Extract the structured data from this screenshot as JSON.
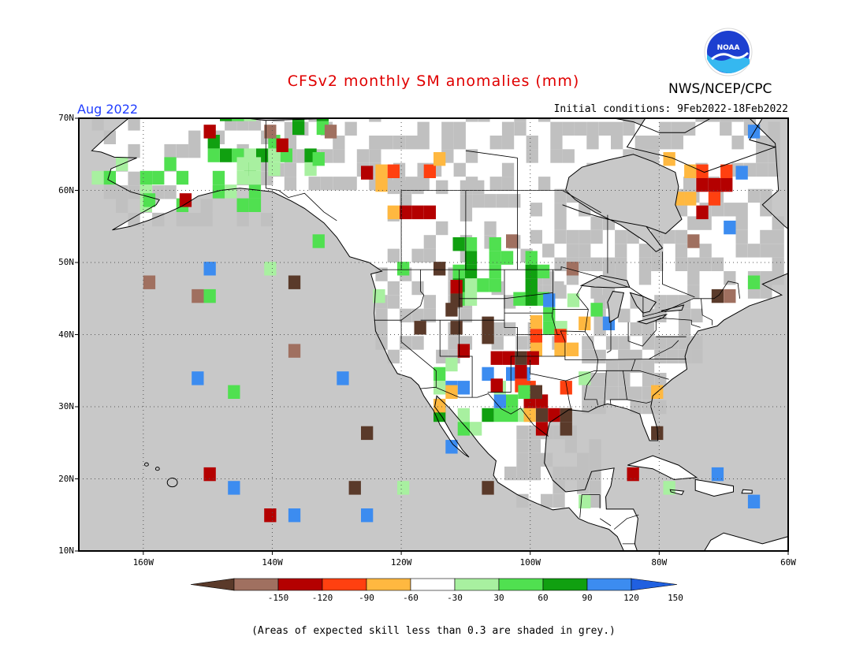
{
  "header": {
    "title": "CFSv2 monthly SM anomalies (mm)",
    "agency": "NWS/NCEP/CPC",
    "valid_month": "Aug 2022",
    "initial_conditions": "Initial conditions: 9Feb2022-18Feb2022"
  },
  "logo": {
    "text": "NOAA",
    "icon": "noaa-logo"
  },
  "map": {
    "projection": "lat-lon",
    "lat_range": [
      10,
      70
    ],
    "lon_range": [
      -170,
      -60
    ],
    "lat_labels": [
      "70N",
      "60N",
      "50N",
      "40N",
      "30N",
      "20N",
      "10N"
    ],
    "lon_labels": [
      "160W",
      "140W",
      "120W",
      "100W",
      "80W",
      "60W"
    ],
    "grid": "dotted",
    "ocean_color": "#c8c8c8",
    "masked_color": "#c0c0c0"
  },
  "colorbar": {
    "labels": [
      "-150",
      "-120",
      "-90",
      "-60",
      "-30",
      "30",
      "60",
      "90",
      "120",
      "150"
    ],
    "colors": [
      "#5a3a2a",
      "#a07060",
      "#b40000",
      "#ff4010",
      "#ffb840",
      "#ffffff",
      "#a8f0a0",
      "#50e050",
      "#10a010",
      "#3c8cf0",
      "#2060e0"
    ]
  },
  "footnote": "(Areas of expected skill less than 0.3 are shaded in grey.)"
}
